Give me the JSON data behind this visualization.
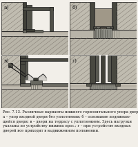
{
  "background_color": "#f2efe9",
  "fig_width": 2.0,
  "fig_height": 2.12,
  "dpi": 100,
  "panel_labels": [
    "а)",
    "б)",
    "в)",
    "г)"
  ],
  "hatch_bg": "#c8c4b8",
  "concrete_color": "#b8b4a8",
  "wall_color": "#d0ccbf",
  "metal_dark": "#404040",
  "metal_mid": "#686860",
  "metal_light": "#909088",
  "stripe_color": "#888880",
  "caption_fontsize": 3.8,
  "label_fontsize": 5.5,
  "line_color": "#1a1a1a",
  "panel_bg": "#e8e4da"
}
